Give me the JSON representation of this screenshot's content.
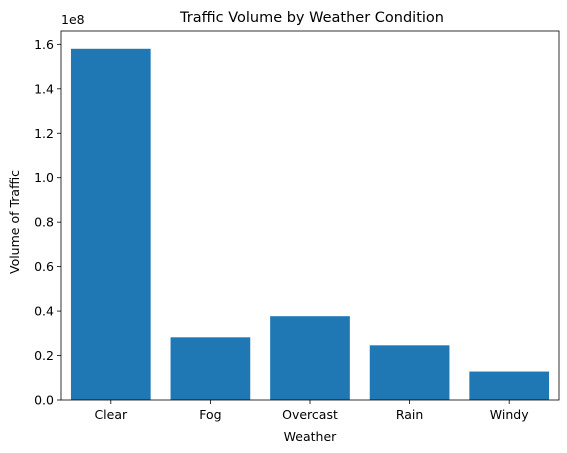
{
  "chart_data": {
    "type": "bar",
    "title": "Traffic Volume by Weather Condition",
    "xlabel": "Weather",
    "ylabel": "Volume of Traffic",
    "y_offset_label": "1e8",
    "categories": [
      "Clear",
      "Fog",
      "Overcast",
      "Rain",
      "Windy"
    ],
    "values": [
      158000000,
      28200000,
      37700000,
      24600000,
      12800000
    ],
    "ylim": [
      0,
      166000000
    ],
    "yticks": [
      0,
      20000000,
      40000000,
      60000000,
      80000000,
      100000000,
      120000000,
      140000000,
      160000000
    ],
    "ytick_labels": [
      "0.0",
      "0.2",
      "0.4",
      "0.6",
      "0.8",
      "1.0",
      "1.2",
      "1.4",
      "1.6"
    ],
    "bar_color": "#1f77b4",
    "grid": false,
    "legend": "none"
  }
}
